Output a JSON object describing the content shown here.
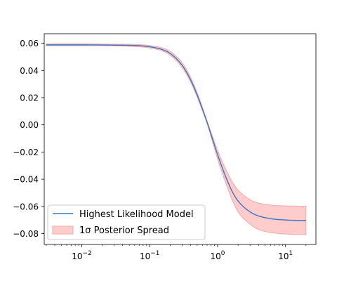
{
  "chart_data": {
    "type": "line",
    "x_scale": "log",
    "xlim": [
      0.0028,
      28
    ],
    "ylim": [
      -0.088,
      0.067
    ],
    "x_ticks": [
      {
        "value": 0.01,
        "base": "10",
        "exp": "−2"
      },
      {
        "value": 0.1,
        "base": "10",
        "exp": "−1"
      },
      {
        "value": 1,
        "base": "10",
        "exp": "0"
      },
      {
        "value": 10,
        "base": "10",
        "exp": "1"
      }
    ],
    "y_ticks": [
      {
        "value": 0.06,
        "label": "0.06"
      },
      {
        "value": 0.04,
        "label": "0.04"
      },
      {
        "value": 0.02,
        "label": "0.02"
      },
      {
        "value": 0.0,
        "label": "0.00"
      },
      {
        "value": -0.02,
        "label": "−0.02"
      },
      {
        "value": -0.04,
        "label": "−0.04"
      },
      {
        "value": -0.06,
        "label": "−0.06"
      },
      {
        "value": -0.08,
        "label": "−0.08"
      }
    ],
    "grid": false,
    "legend_position": "lower-left",
    "series": [
      {
        "name": "Highest Likelihood Model",
        "kind": "line",
        "color": "#3a75c4",
        "x": [
          0.003,
          0.01,
          0.03,
          0.07,
          0.1,
          0.15,
          0.2,
          0.3,
          0.4,
          0.5,
          0.6,
          0.7,
          0.8,
          1.0,
          1.3,
          1.6,
          2.0,
          3.0,
          4.0,
          6.0,
          10.0,
          20.0
        ],
        "y": [
          0.0588,
          0.0588,
          0.0586,
          0.0582,
          0.0574,
          0.0555,
          0.0525,
          0.0438,
          0.0331,
          0.022,
          0.0114,
          0.0019,
          -0.007,
          -0.022,
          -0.0375,
          -0.048,
          -0.056,
          -0.064,
          -0.067,
          -0.069,
          -0.07,
          -0.0704
        ]
      },
      {
        "name": "1σ Posterior Spread",
        "kind": "band",
        "color": "#ffcccc",
        "edge_color": "#f4a8a8",
        "x": [
          0.003,
          0.01,
          0.03,
          0.07,
          0.1,
          0.15,
          0.2,
          0.3,
          0.4,
          0.5,
          0.6,
          0.7,
          0.8,
          1.0,
          1.3,
          1.6,
          2.0,
          3.0,
          4.0,
          6.0,
          10.0,
          20.0
        ],
        "upper": [
          0.0595,
          0.0595,
          0.0593,
          0.059,
          0.0583,
          0.0567,
          0.054,
          0.0457,
          0.035,
          0.0236,
          0.0126,
          0.0028,
          -0.0055,
          -0.0188,
          -0.032,
          -0.041,
          -0.048,
          -0.055,
          -0.0575,
          -0.059,
          -0.0596,
          -0.0598
        ],
        "lower": [
          0.0582,
          0.0582,
          0.058,
          0.0574,
          0.0566,
          0.0545,
          0.0512,
          0.0422,
          0.0314,
          0.0204,
          0.01,
          0.0008,
          -0.0088,
          -0.0252,
          -0.042,
          -0.054,
          -0.064,
          -0.073,
          -0.077,
          -0.0792,
          -0.0803,
          -0.0807
        ]
      }
    ]
  }
}
